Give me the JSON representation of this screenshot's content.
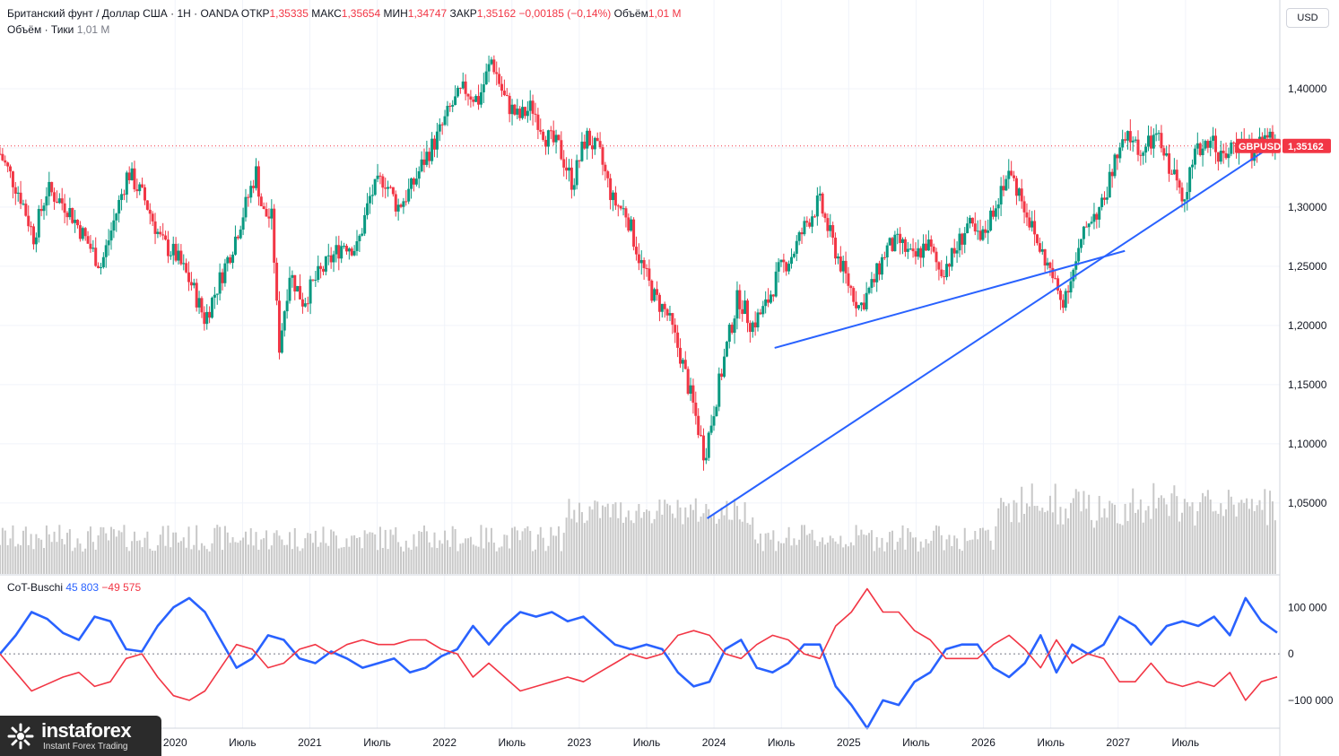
{
  "header": {
    "symbol": "Британский фунт / Доллар США · 1Н · OANDA",
    "open_label": "ОТКР",
    "open": "1,35335",
    "high_label": "МАКС",
    "high": "1,35654",
    "low_label": "МИН",
    "low": "1,34747",
    "close_label": "ЗАКР",
    "close": "1,35162",
    "change": "−0,00185 (−0,14%)",
    "volume_label": "Объём",
    "volume": "1,01 M",
    "volume_ticks_label": "Объём · Тики",
    "volume_ticks": "1,01 M"
  },
  "currency_button": "USD",
  "price_tag": {
    "symbol": "GBPUSD",
    "value": "1,35162"
  },
  "indicator": {
    "name": "CoT-Buschi",
    "value_blue": "45 803",
    "value_red": "−49 575"
  },
  "logo": {
    "name": "instaforex",
    "tagline": "Instant Forex Trading"
  },
  "colors": {
    "up": "#089981",
    "down": "#f23645",
    "trend": "#2962ff",
    "volume": "#c8c8c8"
  },
  "chart_data": [
    {
      "type": "candlestick",
      "ylim": [
        0.99,
        1.475
      ],
      "xlim": [
        2018.7,
        2028.2
      ],
      "y_ticks": [
        "1,40000",
        "1,35000",
        "1,30000",
        "1,25000",
        "1,20000",
        "1,15000",
        "1,10000",
        "1,05000"
      ],
      "y_tick_values": [
        1.4,
        1.35,
        1.3,
        1.25,
        1.2,
        1.15,
        1.1,
        1.05
      ],
      "x_ticks": [
        {
          "label": "2020",
          "t": 2020.0
        },
        {
          "label": "Июль",
          "t": 2020.5
        },
        {
          "label": "2021",
          "t": 2021.0
        },
        {
          "label": "Июль",
          "t": 2021.5
        },
        {
          "label": "2022",
          "t": 2022.0
        },
        {
          "label": "Июль",
          "t": 2022.5
        },
        {
          "label": "2023",
          "t": 2023.0
        },
        {
          "label": "Июль",
          "t": 2023.5
        },
        {
          "label": "2024",
          "t": 2024.0
        },
        {
          "label": "Июль",
          "t": 2024.5
        },
        {
          "label": "2025",
          "t": 2025.0
        },
        {
          "label": "Июль",
          "t": 2025.5
        },
        {
          "label": "2026",
          "t": 2026.0
        },
        {
          "label": "Июль",
          "t": 2026.5
        },
        {
          "label": "2027",
          "t": 2027.0
        },
        {
          "label": "Июль",
          "t": 2027.5
        }
      ],
      "last_price": 1.35162,
      "price_path": [
        [
          2018.7,
          1.345
        ],
        [
          2018.85,
          1.31
        ],
        [
          2018.95,
          1.275
        ],
        [
          2019.05,
          1.315
        ],
        [
          2019.2,
          1.3
        ],
        [
          2019.35,
          1.27
        ],
        [
          2019.45,
          1.25
        ],
        [
          2019.55,
          1.29
        ],
        [
          2019.65,
          1.33
        ],
        [
          2019.78,
          1.305
        ],
        [
          2019.9,
          1.27
        ],
        [
          2020.0,
          1.26
        ],
        [
          2020.12,
          1.235
        ],
        [
          2020.22,
          1.205
        ],
        [
          2020.32,
          1.235
        ],
        [
          2020.42,
          1.265
        ],
        [
          2020.52,
          1.3
        ],
        [
          2020.6,
          1.33
        ],
        [
          2020.65,
          1.295
        ],
        [
          2020.72,
          1.29
        ],
        [
          2020.77,
          1.18
        ],
        [
          2020.85,
          1.245
        ],
        [
          2020.95,
          1.22
        ],
        [
          2021.05,
          1.24
        ],
        [
          2021.15,
          1.255
        ],
        [
          2021.25,
          1.27
        ],
        [
          2021.35,
          1.265
        ],
        [
          2021.45,
          1.31
        ],
        [
          2021.55,
          1.325
        ],
        [
          2021.65,
          1.3
        ],
        [
          2021.75,
          1.315
        ],
        [
          2021.85,
          1.34
        ],
        [
          2021.95,
          1.36
        ],
        [
          2022.05,
          1.385
        ],
        [
          2022.15,
          1.4
        ],
        [
          2022.25,
          1.39
        ],
        [
          2022.35,
          1.425
        ],
        [
          2022.45,
          1.39
        ],
        [
          2022.55,
          1.375
        ],
        [
          2022.65,
          1.385
        ],
        [
          2022.75,
          1.36
        ],
        [
          2022.85,
          1.35
        ],
        [
          2022.95,
          1.32
        ],
        [
          2023.05,
          1.36
        ],
        [
          2023.15,
          1.345
        ],
        [
          2023.25,
          1.305
        ],
        [
          2023.35,
          1.295
        ],
        [
          2023.45,
          1.255
        ],
        [
          2023.55,
          1.225
        ],
        [
          2023.65,
          1.21
        ],
        [
          2023.75,
          1.175
        ],
        [
          2023.85,
          1.13
        ],
        [
          2023.93,
          1.09
        ],
        [
          2024.0,
          1.13
        ],
        [
          2024.1,
          1.185
        ],
        [
          2024.18,
          1.225
        ],
        [
          2024.28,
          1.2
        ],
        [
          2024.38,
          1.215
        ],
        [
          2024.48,
          1.245
        ],
        [
          2024.58,
          1.26
        ],
        [
          2024.68,
          1.285
        ],
        [
          2024.78,
          1.305
        ],
        [
          2024.88,
          1.27
        ],
        [
          2024.98,
          1.24
        ],
        [
          2025.08,
          1.215
        ],
        [
          2025.18,
          1.235
        ],
        [
          2025.28,
          1.265
        ],
        [
          2025.38,
          1.27
        ],
        [
          2025.48,
          1.255
        ],
        [
          2025.58,
          1.27
        ],
        [
          2025.68,
          1.245
        ],
        [
          2025.78,
          1.26
        ],
        [
          2025.88,
          1.285
        ],
        [
          2025.98,
          1.27
        ],
        [
          2026.08,
          1.3
        ],
        [
          2026.18,
          1.33
        ],
        [
          2026.28,
          1.31
        ],
        [
          2026.38,
          1.275
        ],
        [
          2026.48,
          1.25
        ],
        [
          2026.58,
          1.22
        ],
        [
          2026.68,
          1.25
        ],
        [
          2026.78,
          1.29
        ],
        [
          2026.88,
          1.3
        ],
        [
          2026.98,
          1.34
        ],
        [
          2027.08,
          1.36
        ],
        [
          2027.18,
          1.345
        ],
        [
          2027.28,
          1.36
        ],
        [
          2027.38,
          1.335
        ],
        [
          2027.48,
          1.31
        ],
        [
          2027.58,
          1.345
        ],
        [
          2027.68,
          1.36
        ],
        [
          2027.78,
          1.34
        ],
        [
          2027.88,
          1.355
        ],
        [
          2027.98,
          1.345
        ],
        [
          2028.08,
          1.36
        ],
        [
          2028.18,
          1.352
        ]
      ],
      "trendlines": [
        {
          "from": [
            2023.95,
            1.037
          ],
          "to": [
            2028.2,
            1.356
          ]
        },
        {
          "from": [
            2024.45,
            1.181
          ],
          "to": [
            2027.05,
            1.263
          ]
        }
      ]
    },
    {
      "type": "line",
      "name": "CoT-Buschi",
      "ylim": [
        -160000,
        170000
      ],
      "y_ticks": [
        "100 000",
        "0",
        "−100 000"
      ],
      "y_tick_values": [
        100000,
        0,
        -100000
      ],
      "series": [
        {
          "color": "#2962ff",
          "values": [
            0,
            40000,
            90000,
            75000,
            45000,
            30000,
            80000,
            70000,
            10000,
            5000,
            60000,
            100000,
            120000,
            90000,
            30000,
            -30000,
            -10000,
            40000,
            30000,
            -10000,
            -20000,
            5000,
            -10000,
            -30000,
            -20000,
            -10000,
            -40000,
            -30000,
            -5000,
            10000,
            60000,
            20000,
            60000,
            90000,
            80000,
            90000,
            70000,
            80000,
            50000,
            20000,
            10000,
            20000,
            10000,
            -40000,
            -70000,
            -60000,
            10000,
            30000,
            -30000,
            -40000,
            -20000,
            20000,
            20000,
            -70000,
            -110000,
            -160000,
            -100000,
            -110000,
            -60000,
            -40000,
            10000,
            20000,
            20000,
            -30000,
            -50000,
            -20000,
            40000,
            -40000,
            20000,
            0,
            20000,
            80000,
            60000,
            20000,
            60000,
            70000,
            60000,
            80000,
            40000,
            120000,
            70000,
            45803
          ]
        },
        {
          "color": "#f23645",
          "values": [
            0,
            -40000,
            -80000,
            -65000,
            -50000,
            -40000,
            -70000,
            -60000,
            -10000,
            0,
            -50000,
            -90000,
            -100000,
            -80000,
            -30000,
            20000,
            10000,
            -30000,
            -20000,
            10000,
            20000,
            0,
            20000,
            30000,
            20000,
            20000,
            30000,
            30000,
            10000,
            0,
            -50000,
            -20000,
            -50000,
            -80000,
            -70000,
            -60000,
            -50000,
            -60000,
            -40000,
            -20000,
            0,
            -10000,
            0,
            40000,
            50000,
            40000,
            0,
            -10000,
            20000,
            40000,
            30000,
            0,
            -10000,
            60000,
            90000,
            140000,
            90000,
            90000,
            50000,
            30000,
            -10000,
            -10000,
            -10000,
            20000,
            40000,
            10000,
            -30000,
            30000,
            -20000,
            0,
            -10000,
            -60000,
            -60000,
            -20000,
            -60000,
            -70000,
            -60000,
            -70000,
            -40000,
            -100000,
            -60000,
            -49575
          ]
        }
      ]
    }
  ]
}
